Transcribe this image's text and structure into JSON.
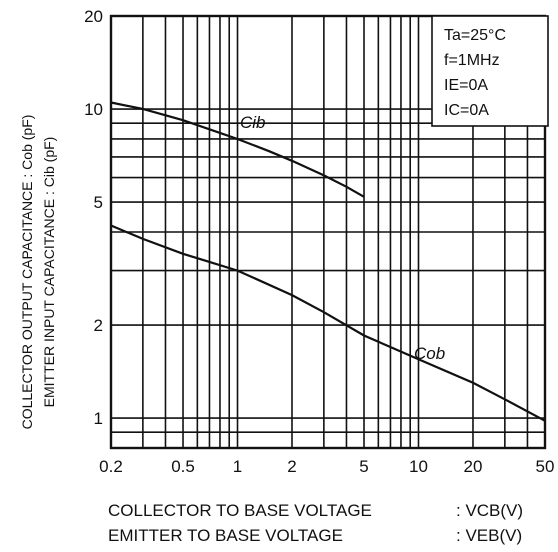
{
  "chart_data": {
    "type": "line",
    "x_scale": "log",
    "y_scale": "log",
    "xlim": [
      0.2,
      50
    ],
    "ylim": [
      0.8,
      20
    ],
    "grid": true,
    "x_ticks": [
      0.2,
      0.5,
      1,
      2,
      5,
      10,
      20,
      50
    ],
    "x_tick_labels": [
      "0.2",
      "0.5",
      "1",
      "2",
      "5",
      "10",
      "20",
      "50"
    ],
    "y_ticks": [
      1,
      2,
      5,
      10,
      20
    ],
    "y_tick_labels": [
      "1",
      "2",
      "5",
      "10",
      "20"
    ],
    "xlabel_lines": [
      {
        "text": "COLLECTOR TO BASE VOLTAGE",
        "unit": ": VCB(V)"
      },
      {
        "text": "EMITTER TO BASE VOLTAGE",
        "unit": ": VEB(V)"
      }
    ],
    "ylabel_lines": [
      "COLLECTOR OUTPUT CAPACITANCE : Cob (pF)",
      "EMITTER INPUT CAPACITANCE   : Cib (pF)"
    ],
    "conditions": [
      "Ta=25°C",
      "f=1MHz",
      "IE=0A",
      "IC=0A"
    ],
    "series": [
      {
        "name": "Cib",
        "x": [
          0.2,
          0.3,
          0.5,
          0.7,
          1,
          1.5,
          2,
          3,
          4,
          5
        ],
        "y": [
          10.5,
          10.0,
          9.2,
          8.6,
          8.0,
          7.3,
          6.8,
          6.1,
          5.6,
          5.2
        ]
      },
      {
        "name": "Cob",
        "x": [
          0.2,
          0.3,
          0.5,
          0.7,
          1,
          2,
          3,
          5,
          10,
          20,
          30,
          50
        ],
        "y": [
          4.2,
          3.8,
          3.4,
          3.2,
          3.0,
          2.5,
          2.2,
          1.85,
          1.55,
          1.3,
          1.15,
          0.98
        ]
      }
    ]
  }
}
